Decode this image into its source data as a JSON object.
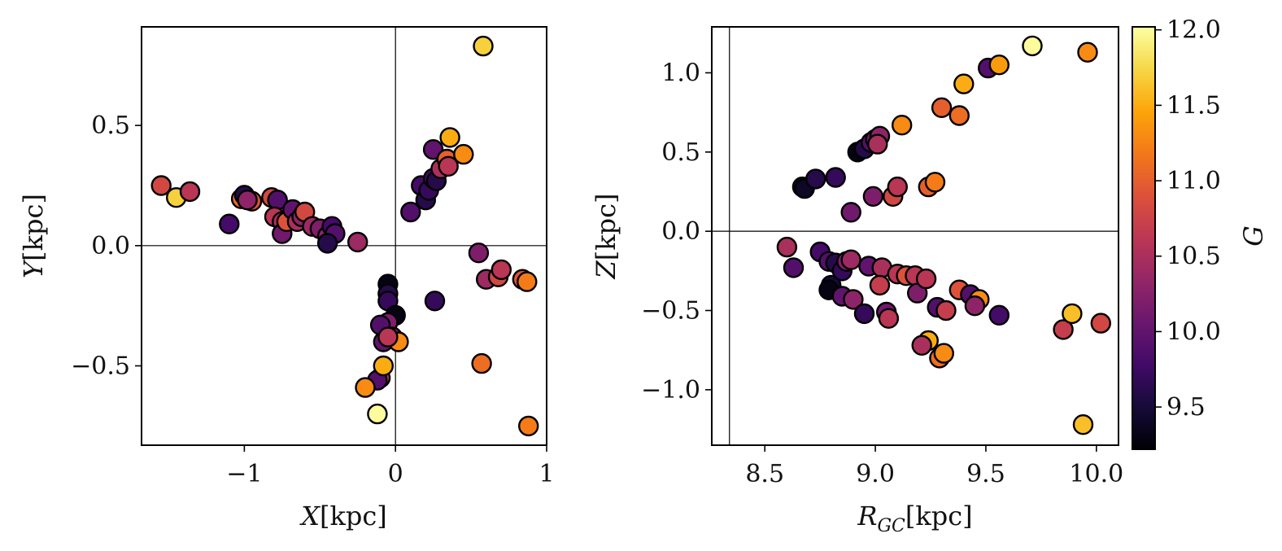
{
  "colorbar": {
    "label": "G",
    "range": [
      9.22,
      12.02
    ],
    "ticks": [
      {
        "value": 9.5,
        "label": "9.5"
      },
      {
        "value": 10.0,
        "label": "10.0"
      },
      {
        "value": 10.5,
        "label": "10.5"
      },
      {
        "value": 11.0,
        "label": "11.0"
      },
      {
        "value": 11.5,
        "label": "11.5"
      },
      {
        "value": 12.0,
        "label": "12.0"
      }
    ],
    "colormap": "inferno",
    "stops": [
      "#000004",
      "#160b39",
      "#420a68",
      "#6a176e",
      "#932667",
      "#bc3754",
      "#dd513a",
      "#f37819",
      "#fca50a",
      "#f6d746",
      "#fcffa4"
    ]
  },
  "chart_data": [
    {
      "type": "scatter",
      "xlabel_main": "X",
      "xlabel_unit": "[kpc]",
      "ylabel_main": "Y",
      "ylabel_unit": "[kpc]",
      "xlim": [
        -1.68,
        1.0
      ],
      "ylim": [
        -0.83,
        0.91
      ],
      "xticks": [
        {
          "value": -1,
          "label": "−1"
        },
        {
          "value": 0,
          "label": "0"
        },
        {
          "value": 1,
          "label": "1"
        }
      ],
      "yticks": [
        {
          "value": -0.5,
          "label": "−0.5"
        },
        {
          "value": 0.0,
          "label": "0.0"
        },
        {
          "value": 0.5,
          "label": "0.5"
        }
      ],
      "reference_lines": {
        "x": 0,
        "y": 0
      },
      "points": [
        {
          "x": -1.55,
          "y": 0.25,
          "g": 10.8
        },
        {
          "x": -1.45,
          "y": 0.2,
          "g": 11.7
        },
        {
          "x": -1.36,
          "y": 0.225,
          "g": 10.6
        },
        {
          "x": -1.1,
          "y": 0.09,
          "g": 9.8
        },
        {
          "x": -1.02,
          "y": 0.195,
          "g": 11.1
        },
        {
          "x": -1.0,
          "y": 0.21,
          "g": 9.6
        },
        {
          "x": -0.95,
          "y": 0.185,
          "g": 10.9
        },
        {
          "x": -0.98,
          "y": 0.19,
          "g": 10.3
        },
        {
          "x": -0.82,
          "y": 0.2,
          "g": 10.8
        },
        {
          "x": -0.78,
          "y": 0.19,
          "g": 9.9
        },
        {
          "x": -0.8,
          "y": 0.12,
          "g": 10.6
        },
        {
          "x": -0.75,
          "y": 0.1,
          "g": 10.5
        },
        {
          "x": -0.75,
          "y": 0.05,
          "g": 10.1
        },
        {
          "x": -0.72,
          "y": 0.1,
          "g": 10.9
        },
        {
          "x": -0.68,
          "y": 0.15,
          "g": 10.0
        },
        {
          "x": -0.65,
          "y": 0.1,
          "g": 10.5
        },
        {
          "x": -0.62,
          "y": 0.12,
          "g": 10.3
        },
        {
          "x": -0.6,
          "y": 0.14,
          "g": 10.8
        },
        {
          "x": -0.55,
          "y": 0.08,
          "g": 10.4
        },
        {
          "x": -0.5,
          "y": 0.07,
          "g": 10.2
        },
        {
          "x": -0.45,
          "y": 0.04,
          "g": 10.3
        },
        {
          "x": -0.42,
          "y": 0.08,
          "g": 9.8
        },
        {
          "x": -0.4,
          "y": 0.05,
          "g": 9.9
        },
        {
          "x": -0.45,
          "y": 0.01,
          "g": 9.6
        },
        {
          "x": -0.25,
          "y": 0.015,
          "g": 10.4
        },
        {
          "x": -0.05,
          "y": -0.16,
          "g": 9.3
        },
        {
          "x": -0.05,
          "y": -0.2,
          "g": 9.6
        },
        {
          "x": -0.05,
          "y": -0.23,
          "g": 9.7
        },
        {
          "x": 0.0,
          "y": -0.29,
          "g": 9.3
        },
        {
          "x": -0.05,
          "y": -0.32,
          "g": 10.2
        },
        {
          "x": -0.1,
          "y": -0.33,
          "g": 9.9
        },
        {
          "x": -0.08,
          "y": -0.4,
          "g": 10.0
        },
        {
          "x": -0.02,
          "y": -0.38,
          "g": 10.3
        },
        {
          "x": 0.02,
          "y": -0.4,
          "g": 11.3
        },
        {
          "x": -0.05,
          "y": -0.38,
          "g": 10.6
        },
        {
          "x": -0.1,
          "y": -0.55,
          "g": 10.7
        },
        {
          "x": -0.12,
          "y": -0.56,
          "g": 9.9
        },
        {
          "x": -0.08,
          "y": -0.5,
          "g": 11.5
        },
        {
          "x": -0.2,
          "y": -0.59,
          "g": 11.3
        },
        {
          "x": -0.12,
          "y": -0.7,
          "g": 12.0
        },
        {
          "x": 0.1,
          "y": 0.14,
          "g": 9.9
        },
        {
          "x": 0.17,
          "y": 0.25,
          "g": 9.8
        },
        {
          "x": 0.2,
          "y": 0.19,
          "g": 9.6
        },
        {
          "x": 0.22,
          "y": 0.23,
          "g": 9.7
        },
        {
          "x": 0.25,
          "y": 0.28,
          "g": 9.8
        },
        {
          "x": 0.27,
          "y": 0.27,
          "g": 9.6
        },
        {
          "x": 0.25,
          "y": 0.4,
          "g": 10.0
        },
        {
          "x": 0.3,
          "y": 0.32,
          "g": 10.5
        },
        {
          "x": 0.34,
          "y": 0.36,
          "g": 11.0
        },
        {
          "x": 0.35,
          "y": 0.33,
          "g": 10.6
        },
        {
          "x": 0.36,
          "y": 0.45,
          "g": 11.5
        },
        {
          "x": 0.45,
          "y": 0.38,
          "g": 11.3
        },
        {
          "x": 0.26,
          "y": -0.23,
          "g": 9.7
        },
        {
          "x": 0.55,
          "y": -0.03,
          "g": 10.2
        },
        {
          "x": 0.6,
          "y": -0.14,
          "g": 10.4
        },
        {
          "x": 0.68,
          "y": -0.13,
          "g": 10.8
        },
        {
          "x": 0.7,
          "y": -0.1,
          "g": 10.6
        },
        {
          "x": 0.84,
          "y": -0.14,
          "g": 10.9
        },
        {
          "x": 0.87,
          "y": -0.15,
          "g": 11.2
        },
        {
          "x": 0.57,
          "y": -0.49,
          "g": 11.1
        },
        {
          "x": 0.58,
          "y": 0.83,
          "g": 11.7
        },
        {
          "x": 0.88,
          "y": -0.75,
          "g": 11.2
        }
      ]
    },
    {
      "type": "scatter",
      "xlabel_main": "R",
      "xlabel_sub": "GC",
      "xlabel_unit": "[kpc]",
      "ylabel_main": "Z",
      "ylabel_unit": "[kpc]",
      "xlim": [
        8.26,
        10.1
      ],
      "ylim": [
        -1.35,
        1.29
      ],
      "xticks": [
        {
          "value": 8.5,
          "label": "8.5"
        },
        {
          "value": 9.0,
          "label": "9.0"
        },
        {
          "value": 9.5,
          "label": "9.5"
        },
        {
          "value": 10.0,
          "label": "10.0"
        }
      ],
      "yticks": [
        {
          "value": -1.0,
          "label": "−1.0"
        },
        {
          "value": -0.5,
          "label": "−0.5"
        },
        {
          "value": 0.0,
          "label": "0.0"
        },
        {
          "value": 0.5,
          "label": "0.5"
        },
        {
          "value": 1.0,
          "label": "1.0"
        }
      ],
      "reference_lines": {
        "x": 8.34,
        "y": 0
      },
      "points": [
        {
          "x": 8.67,
          "y": 0.28,
          "g": 9.5
        },
        {
          "x": 8.68,
          "y": 0.27,
          "g": 9.4
        },
        {
          "x": 8.73,
          "y": 0.33,
          "g": 9.6
        },
        {
          "x": 8.82,
          "y": 0.34,
          "g": 9.7
        },
        {
          "x": 8.92,
          "y": 0.5,
          "g": 9.3
        },
        {
          "x": 8.95,
          "y": 0.52,
          "g": 9.6
        },
        {
          "x": 8.98,
          "y": 0.56,
          "g": 9.9
        },
        {
          "x": 9.0,
          "y": 0.58,
          "g": 10.1
        },
        {
          "x": 9.02,
          "y": 0.6,
          "g": 10.3
        },
        {
          "x": 9.01,
          "y": 0.55,
          "g": 10.5
        },
        {
          "x": 8.89,
          "y": 0.12,
          "g": 10.1
        },
        {
          "x": 8.99,
          "y": 0.22,
          "g": 10.2
        },
        {
          "x": 9.08,
          "y": 0.22,
          "g": 10.8
        },
        {
          "x": 9.1,
          "y": 0.28,
          "g": 10.6
        },
        {
          "x": 9.12,
          "y": 0.67,
          "g": 11.3
        },
        {
          "x": 9.24,
          "y": 0.28,
          "g": 11.0
        },
        {
          "x": 9.27,
          "y": 0.31,
          "g": 11.2
        },
        {
          "x": 9.3,
          "y": 0.78,
          "g": 11.0
        },
        {
          "x": 9.38,
          "y": 0.73,
          "g": 11.1
        },
        {
          "x": 9.4,
          "y": 0.93,
          "g": 11.5
        },
        {
          "x": 9.51,
          "y": 1.03,
          "g": 9.9
        },
        {
          "x": 9.56,
          "y": 1.05,
          "g": 11.4
        },
        {
          "x": 9.71,
          "y": 1.17,
          "g": 12.0
        },
        {
          "x": 9.96,
          "y": 1.13,
          "g": 11.3
        },
        {
          "x": 8.6,
          "y": -0.1,
          "g": 10.5
        },
        {
          "x": 8.63,
          "y": -0.23,
          "g": 9.9
        },
        {
          "x": 8.75,
          "y": -0.13,
          "g": 9.8
        },
        {
          "x": 8.79,
          "y": -0.19,
          "g": 9.9
        },
        {
          "x": 8.8,
          "y": -0.34,
          "g": 9.5
        },
        {
          "x": 8.79,
          "y": -0.37,
          "g": 9.3
        },
        {
          "x": 8.82,
          "y": -0.2,
          "g": 9.6
        },
        {
          "x": 8.85,
          "y": -0.25,
          "g": 9.7
        },
        {
          "x": 8.85,
          "y": -0.41,
          "g": 10.0
        },
        {
          "x": 8.87,
          "y": -0.19,
          "g": 10.2
        },
        {
          "x": 8.89,
          "y": -0.18,
          "g": 10.4
        },
        {
          "x": 8.9,
          "y": -0.43,
          "g": 10.3
        },
        {
          "x": 8.95,
          "y": -0.52,
          "g": 9.7
        },
        {
          "x": 8.97,
          "y": -0.22,
          "g": 10.0
        },
        {
          "x": 9.03,
          "y": -0.23,
          "g": 10.5
        },
        {
          "x": 9.02,
          "y": -0.34,
          "g": 10.7
        },
        {
          "x": 9.05,
          "y": -0.51,
          "g": 10.1
        },
        {
          "x": 9.06,
          "y": -0.55,
          "g": 10.6
        },
        {
          "x": 9.1,
          "y": -0.27,
          "g": 10.6
        },
        {
          "x": 9.14,
          "y": -0.28,
          "g": 10.9
        },
        {
          "x": 9.18,
          "y": -0.28,
          "g": 10.6
        },
        {
          "x": 9.19,
          "y": -0.39,
          "g": 10.2
        },
        {
          "x": 9.23,
          "y": -0.3,
          "g": 10.6
        },
        {
          "x": 9.24,
          "y": -0.69,
          "g": 11.5
        },
        {
          "x": 9.21,
          "y": -0.72,
          "g": 10.5
        },
        {
          "x": 9.28,
          "y": -0.48,
          "g": 9.9
        },
        {
          "x": 9.32,
          "y": -0.5,
          "g": 10.7
        },
        {
          "x": 9.29,
          "y": -0.8,
          "g": 11.1
        },
        {
          "x": 9.31,
          "y": -0.77,
          "g": 11.3
        },
        {
          "x": 9.38,
          "y": -0.37,
          "g": 10.9
        },
        {
          "x": 9.43,
          "y": -0.4,
          "g": 9.9
        },
        {
          "x": 9.47,
          "y": -0.43,
          "g": 11.3
        },
        {
          "x": 9.45,
          "y": -0.47,
          "g": 10.3
        },
        {
          "x": 9.56,
          "y": -0.53,
          "g": 9.8
        },
        {
          "x": 9.85,
          "y": -0.62,
          "g": 10.7
        },
        {
          "x": 9.89,
          "y": -0.52,
          "g": 11.6
        },
        {
          "x": 10.02,
          "y": -0.58,
          "g": 10.8
        },
        {
          "x": 9.94,
          "y": -1.22,
          "g": 11.6
        }
      ]
    }
  ]
}
